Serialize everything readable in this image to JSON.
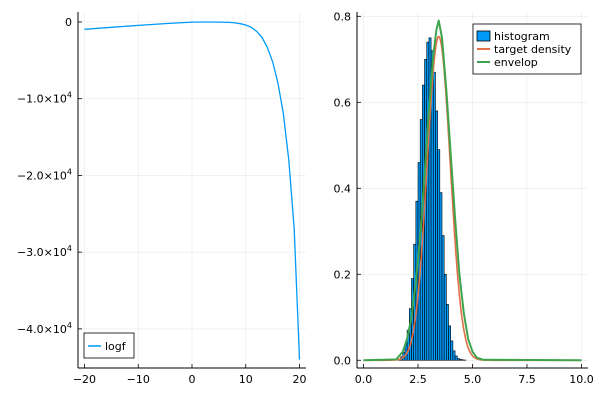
{
  "chart_data": [
    {
      "type": "line",
      "xlim": [
        -21.2,
        21.2
      ],
      "ylim": [
        -45100,
        1300
      ],
      "x_ticks": [
        -20,
        -10,
        0,
        10,
        20
      ],
      "x_tick_labels": [
        "−20",
        "−10",
        "0",
        "10",
        "20"
      ],
      "y_ticks": [
        0,
        -10000,
        -20000,
        -30000,
        -40000
      ],
      "y_tick_labels": [
        {
          "mantissa": "0",
          "exp": ""
        },
        {
          "mantissa": "−1.0×10",
          "exp": "4"
        },
        {
          "mantissa": "−2.0×10",
          "exp": "4"
        },
        {
          "mantissa": "−3.0×10",
          "exp": "4"
        },
        {
          "mantissa": "−4.0×10",
          "exp": "4"
        }
      ],
      "grid": true,
      "legend": "bottom-left",
      "series": [
        {
          "name": "logf",
          "color": "#009af9",
          "x": [
            -20,
            -15,
            -10,
            -5,
            0,
            3,
            5,
            7,
            8,
            9,
            10,
            11,
            12,
            13,
            14,
            15,
            16,
            17,
            18,
            19,
            20
          ],
          "y": [
            -950,
            -700,
            -450,
            -210,
            -20,
            0,
            -12,
            -60,
            -120,
            -220,
            -400,
            -700,
            -1200,
            -2000,
            -3300,
            -5200,
            -8000,
            -12000,
            -18000,
            -27000,
            -44000
          ]
        }
      ]
    },
    {
      "type": "bar",
      "xlim": [
        -0.3,
        10.3
      ],
      "ylim": [
        -0.018,
        0.81
      ],
      "x_ticks": [
        0,
        2.5,
        5,
        7.5,
        10
      ],
      "x_tick_labels": [
        "0.0",
        "2.5",
        "5.0",
        "7.5",
        "10.0"
      ],
      "y_ticks": [
        0,
        0.2,
        0.4,
        0.6,
        0.8
      ],
      "y_tick_labels": [
        "0.0",
        "0.2",
        "0.4",
        "0.6",
        "0.8"
      ],
      "grid": true,
      "legend": "top-right",
      "histogram": {
        "name": "histogram",
        "color": "#009af9",
        "bin_width": 0.1,
        "bin_start": 1.6,
        "values": [
          0.003,
          0.008,
          0.018,
          0.04,
          0.07,
          0.12,
          0.19,
          0.27,
          0.37,
          0.46,
          0.56,
          0.64,
          0.7,
          0.74,
          0.75,
          0.72,
          0.67,
          0.58,
          0.49,
          0.39,
          0.29,
          0.2,
          0.13,
          0.08,
          0.045,
          0.022,
          0.01,
          0.004,
          0.002,
          0.001,
          0.0005
        ]
      },
      "series": [
        {
          "name": "target density",
          "color": "#e26f46",
          "mean": 3.45,
          "sd": 0.53,
          "peak": 0.753
        },
        {
          "name": "envelop",
          "color": "#3da44d",
          "x": [
            0,
            1.5,
            1.8,
            2.0,
            2.2,
            2.4,
            2.6,
            2.8,
            3.0,
            3.2,
            3.35,
            3.45,
            3.6,
            3.8,
            4.0,
            4.2,
            4.4,
            4.6,
            4.8,
            5.0,
            5.2,
            5.5,
            10
          ],
          "y": [
            0,
            0.002,
            0.02,
            0.05,
            0.1,
            0.18,
            0.29,
            0.43,
            0.58,
            0.71,
            0.77,
            0.79,
            0.75,
            0.63,
            0.48,
            0.33,
            0.2,
            0.11,
            0.05,
            0.02,
            0.006,
            0.001,
            0
          ]
        }
      ]
    }
  ]
}
